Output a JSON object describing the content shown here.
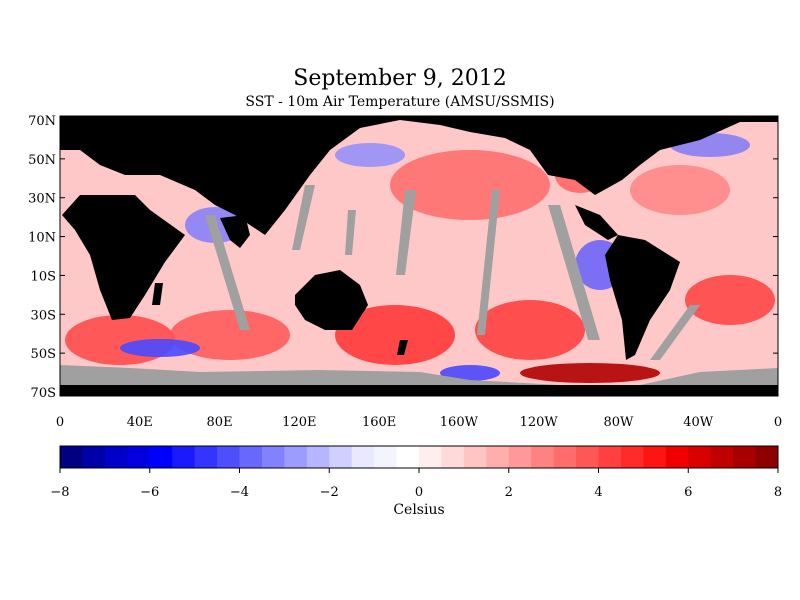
{
  "title": "September 9, 2012",
  "subtitle": "SST - 10m Air Temperature (AMSU/SSMIS)",
  "lat_labels": [
    "70N",
    "50N",
    "30N",
    "10N",
    "10S",
    "30S",
    "50S",
    "70S"
  ],
  "lon_labels": [
    "0",
    "40E",
    "80E",
    "120E",
    "160E",
    "160W",
    "120W",
    "80W",
    "40W",
    "0"
  ],
  "colorbar": {
    "unit": "Celsius",
    "tick_labels": [
      "-8",
      "-6",
      "-4",
      "-2",
      "0",
      "2",
      "4",
      "6",
      "8"
    ],
    "min": -8,
    "max": 8,
    "step": 0.5,
    "colors": [
      "#000080",
      "#0000a8",
      "#0000c8",
      "#0000e0",
      "#0000ff",
      "#1a1aff",
      "#3434ff",
      "#4e4eff",
      "#6868ff",
      "#8282ff",
      "#9c9cff",
      "#b6b6ff",
      "#d0d0ff",
      "#e8e8ff",
      "#f4f4ff",
      "#ffffff",
      "#ffeeee",
      "#ffdada",
      "#ffc4c4",
      "#ffaeae",
      "#ff9898",
      "#ff8282",
      "#ff6c6c",
      "#ff5656",
      "#ff4040",
      "#ff2a2a",
      "#ff1414",
      "#f00000",
      "#d80000",
      "#c00000",
      "#a80000",
      "#8c0000"
    ]
  },
  "colors": {
    "land": "#000000",
    "no_data": "#a0a0a0",
    "ocean_warm": "#ff7a7a",
    "ocean_cool": "#7a7aff"
  }
}
